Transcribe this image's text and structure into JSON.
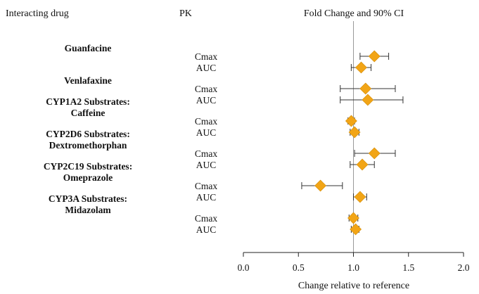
{
  "chart_data": {
    "type": "forest",
    "headers": {
      "drug": "Interacting drug",
      "pk": "PK",
      "effect": "Fold Change and 90% CI"
    },
    "xlabel": "Change relative to reference",
    "xlim": [
      0.0,
      2.0
    ],
    "xticks": [
      "0.0",
      "0.5",
      "1.0",
      "1.5",
      "2.0"
    ],
    "reference_line": 1.0,
    "marker_color": "#F2A516",
    "groups": [
      {
        "lines": [
          "Guanfacine"
        ],
        "rows": [
          {
            "pk": "Cmax",
            "estimate": 1.19,
            "lower": 1.06,
            "upper": 1.32
          },
          {
            "pk": "AUC",
            "estimate": 1.07,
            "lower": 0.98,
            "upper": 1.16
          }
        ]
      },
      {
        "lines": [
          "Venlafaxine"
        ],
        "rows": [
          {
            "pk": "Cmax",
            "estimate": 1.11,
            "lower": 0.88,
            "upper": 1.38
          },
          {
            "pk": "AUC",
            "estimate": 1.13,
            "lower": 0.88,
            "upper": 1.45
          }
        ]
      },
      {
        "lines": [
          "CYP1A2 Substrates:",
          "Caffeine"
        ],
        "rows": [
          {
            "pk": "Cmax",
            "estimate": 0.98,
            "lower": 0.95,
            "upper": 1.01
          },
          {
            "pk": "AUC",
            "estimate": 1.01,
            "lower": 0.97,
            "upper": 1.05
          }
        ]
      },
      {
        "lines": [
          "CYP2D6 Substrates:",
          "Dextromethorphan"
        ],
        "rows": [
          {
            "pk": "Cmax",
            "estimate": 1.19,
            "lower": 1.01,
            "upper": 1.38
          },
          {
            "pk": "AUC",
            "estimate": 1.08,
            "lower": 0.97,
            "upper": 1.19
          }
        ]
      },
      {
        "lines": [
          "CYP2C19 Substrates:",
          "Omeprazole"
        ],
        "rows": [
          {
            "pk": "Cmax",
            "estimate": 0.7,
            "lower": 0.53,
            "upper": 0.9
          },
          {
            "pk": "AUC",
            "estimate": 1.06,
            "lower": 1.0,
            "upper": 1.12
          }
        ]
      },
      {
        "lines": [
          "CYP3A Substrates:",
          "Midazolam"
        ],
        "rows": [
          {
            "pk": "Cmax",
            "estimate": 1.0,
            "lower": 0.96,
            "upper": 1.04
          },
          {
            "pk": "AUC",
            "estimate": 1.02,
            "lower": 0.98,
            "upper": 1.05
          }
        ]
      }
    ]
  }
}
